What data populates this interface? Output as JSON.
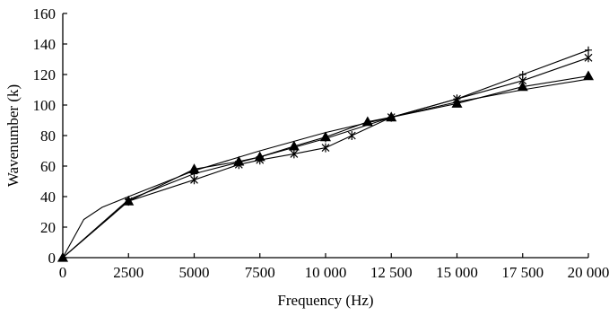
{
  "chart_data": {
    "type": "line",
    "title": "",
    "xlabel": "Frequency (Hz)",
    "ylabel": "Wavenumber (k)",
    "xlim": [
      0,
      20000
    ],
    "ylim": [
      0,
      160
    ],
    "xticks": [
      0,
      2500,
      5000,
      7500,
      10000,
      12500,
      15000,
      17500,
      20000
    ],
    "xtick_labels": [
      "0",
      "2500",
      "5000",
      "7500",
      "10 000",
      "12 500",
      "15 000",
      "17 500",
      "20 000"
    ],
    "yticks": [
      0,
      20,
      40,
      60,
      80,
      100,
      120,
      140,
      160
    ],
    "ytick_labels": [
      "0",
      "20",
      "40",
      "60",
      "80",
      "100",
      "120",
      "140",
      "160"
    ],
    "grid": false,
    "series": [
      {
        "marker": "plus",
        "x": [
          0,
          2500,
          5000,
          7500,
          10000,
          12500,
          15000,
          17500,
          20000
        ],
        "y": [
          0,
          38,
          55,
          66,
          78,
          92,
          104,
          120,
          136
        ]
      },
      {
        "marker": "star",
        "x": [
          0,
          2500,
          5000,
          6700,
          7500,
          8800,
          10000,
          11000,
          12500,
          15000,
          17500,
          20000
        ],
        "y": [
          0,
          37,
          51,
          61,
          64,
          68,
          72,
          80,
          92,
          104,
          116,
          131
        ]
      },
      {
        "marker": "triangle",
        "x": [
          0,
          2500,
          5000,
          6700,
          7500,
          8800,
          10000,
          11600,
          12500,
          15000,
          17500,
          20000
        ],
        "y": [
          0,
          37,
          58,
          63,
          66,
          73,
          79,
          89,
          92,
          101,
          112,
          119
        ]
      },
      {
        "marker": "none",
        "x": [
          0,
          800,
          1500,
          2500,
          5000,
          7500,
          10000,
          12500,
          15000,
          17500,
          20000
        ],
        "y": [
          0,
          25,
          33,
          40,
          57,
          70,
          82,
          92,
          102,
          110,
          117
        ]
      }
    ]
  }
}
